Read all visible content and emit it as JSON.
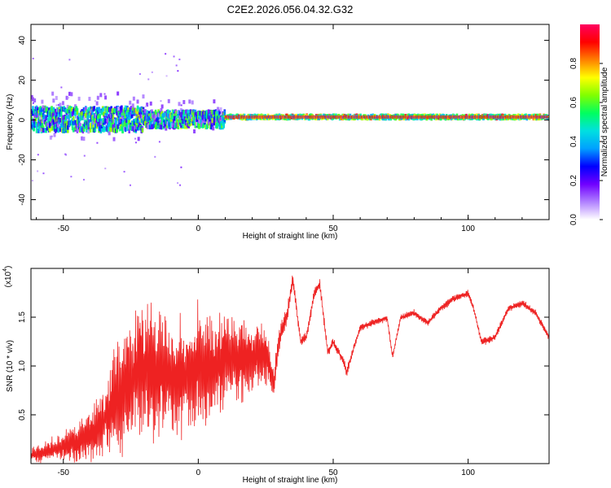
{
  "title": "C2E2.2026.056.04.32.G32",
  "chart_data": [
    {
      "type": "heatmap",
      "xlabel": "Height of straight line (km)",
      "ylabel": "Frequency (Hz)",
      "xlim": [
        -62,
        130
      ],
      "ylim": [
        -50,
        48
      ],
      "xticks": [
        -50,
        0,
        50,
        100
      ],
      "yticks": [
        -40,
        -20,
        0,
        20,
        40
      ],
      "colorbar": {
        "label": "Normalized spectral amplitude",
        "range": [
          0,
          1
        ],
        "ticks": [
          "0.0",
          "0.2",
          "0.4",
          "0.6",
          "0.8"
        ],
        "colormap": [
          "#ffffff",
          "#b080ff",
          "#7000ff",
          "#0000ff",
          "#00a0ff",
          "#00e0e0",
          "#00ff60",
          "#80ff00",
          "#ffff00",
          "#ff8000",
          "#ff0000",
          "#ff0060"
        ]
      },
      "ridge": {
        "frequency_hz": 1.5
      }
    },
    {
      "type": "line",
      "xlabel": "Height of straight line (km)",
      "ylabel": "SNR (10 * v/v)",
      "scale_label": "(x10",
      "scale_exponent": "4",
      "xlim": [
        -62,
        130
      ],
      "ylim": [
        0,
        2.0
      ],
      "xticks": [
        -50,
        0,
        50,
        100
      ],
      "yticks": [
        "0.5",
        "1.0",
        "1.5"
      ],
      "color": "#ee2222",
      "envelope": {
        "x": [
          -62,
          -55,
          -50,
          -45,
          -40,
          -35,
          -30,
          -25,
          -20,
          -15,
          -10,
          -5,
          0,
          5,
          10,
          15,
          20,
          25,
          28,
          30,
          33,
          35,
          38,
          40,
          43,
          45,
          48,
          50,
          53,
          55,
          60,
          65,
          70,
          72,
          75,
          80,
          85,
          90,
          95,
          100,
          102,
          105,
          110,
          115,
          120,
          125,
          130
        ],
        "y": [
          0.1,
          0.15,
          0.2,
          0.25,
          0.35,
          0.5,
          0.75,
          0.95,
          1.1,
          1.0,
          0.95,
          1.0,
          1.1,
          1.05,
          1.2,
          1.15,
          1.15,
          1.2,
          0.85,
          1.3,
          1.55,
          1.9,
          1.25,
          1.3,
          1.75,
          1.85,
          1.15,
          1.25,
          1.1,
          0.95,
          1.4,
          1.45,
          1.5,
          1.1,
          1.5,
          1.55,
          1.45,
          1.6,
          1.7,
          1.75,
          1.6,
          1.25,
          1.3,
          1.6,
          1.65,
          1.55,
          1.3
        ],
        "amplitude": [
          0.08,
          0.12,
          0.15,
          0.22,
          0.3,
          0.4,
          0.6,
          0.7,
          0.75,
          0.7,
          0.65,
          0.6,
          0.7,
          0.6,
          0.55,
          0.5,
          0.4,
          0.35,
          0.2,
          0.15,
          0.1,
          0.08,
          0.06,
          0.06,
          0.06,
          0.06,
          0.05,
          0.05,
          0.05,
          0.05,
          0.04,
          0.04,
          0.04,
          0.04,
          0.04,
          0.04,
          0.04,
          0.04,
          0.04,
          0.04,
          0.04,
          0.04,
          0.04,
          0.04,
          0.04,
          0.04,
          0.04
        ]
      }
    }
  ]
}
